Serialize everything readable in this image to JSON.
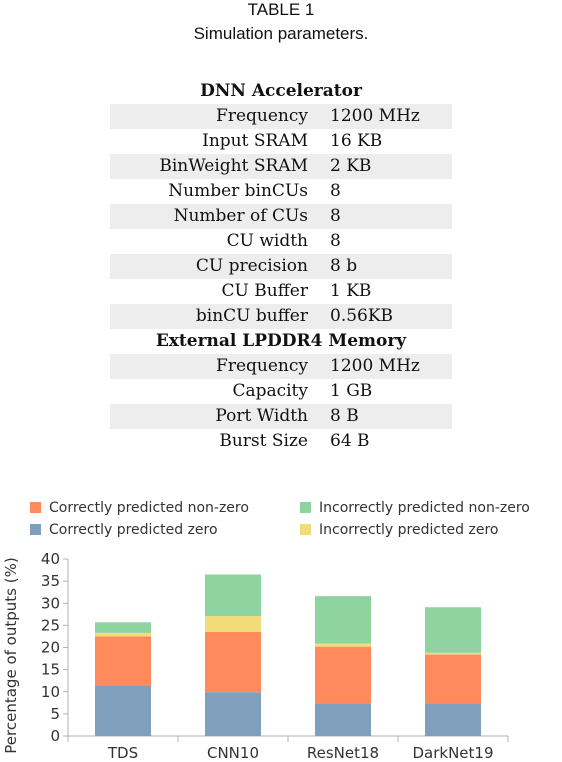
{
  "caption": {
    "label": "TABLE 1",
    "title": "Simulation parameters."
  },
  "table": {
    "rows": [
      {
        "type": "section",
        "label": "DNN Accelerator"
      },
      {
        "type": "row",
        "label": "Frequency",
        "value": "1200 MHz"
      },
      {
        "type": "row",
        "label": "Input SRAM",
        "value": "16 KB"
      },
      {
        "type": "row",
        "label": "BinWeight SRAM",
        "value": "2 KB"
      },
      {
        "type": "row",
        "label": "Number binCUs",
        "value": "8"
      },
      {
        "type": "row",
        "label": "Number of CUs",
        "value": "8"
      },
      {
        "type": "row",
        "label": "CU width",
        "value": "8"
      },
      {
        "type": "row",
        "label": "CU precision",
        "value": "8 b"
      },
      {
        "type": "row",
        "label": "CU Buffer",
        "value": "1 KB"
      },
      {
        "type": "row",
        "label": "binCU buffer",
        "value": "0.56KB"
      },
      {
        "type": "section",
        "label": "External LPDDR4 Memory"
      },
      {
        "type": "row",
        "label": "Frequency",
        "value": "1200 MHz"
      },
      {
        "type": "row",
        "label": "Capacity",
        "value": "1 GB"
      },
      {
        "type": "row",
        "label": "Port Width",
        "value": "8 B"
      },
      {
        "type": "row",
        "label": "Burst Size",
        "value": "64 B"
      }
    ]
  },
  "chart_data": {
    "type": "bar",
    "stacked": true,
    "categories": [
      "TDS",
      "CNN10",
      "ResNet18",
      "DarkNet19"
    ],
    "series": [
      {
        "name": "Correctly predicted zero",
        "color": "#7f9fbd",
        "values": [
          11.3,
          9.9,
          7.4,
          7.4
        ]
      },
      {
        "name": "Correctly predicted non-zero",
        "color": "#ff8a5c",
        "values": [
          11.2,
          13.6,
          12.8,
          11.0
        ]
      },
      {
        "name": "Incorrectly predicted zero",
        "color": "#f2dc7a",
        "values": [
          0.8,
          3.6,
          0.7,
          0.4
        ]
      },
      {
        "name": "Incorrectly predicted non-zero",
        "color": "#8fd3a0",
        "values": [
          2.4,
          9.4,
          10.7,
          10.3
        ]
      }
    ],
    "ylabel": "Percentage of outputs (%)",
    "xlabel": "",
    "ylim": [
      0,
      40
    ],
    "yticks": [
      0,
      5,
      10,
      15,
      20,
      25,
      30,
      35,
      40
    ],
    "grid": false,
    "legend": {
      "placement": "top",
      "order": [
        "Correctly predicted non-zero",
        "Incorrectly predicted non-zero",
        "Correctly predicted zero",
        "Incorrectly predicted zero"
      ]
    }
  }
}
